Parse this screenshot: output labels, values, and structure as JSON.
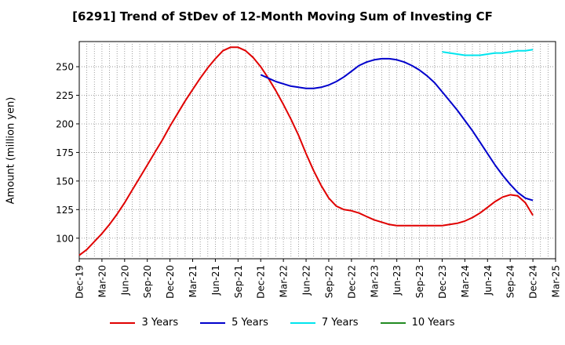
{
  "title": "[6291]  Trend of StDev of 12-Month Moving Sum of Investing CF",
  "chart_data": {
    "type": "line",
    "title": "[6291]  Trend of StDev of 12-Month Moving Sum of Investing CF",
    "xlabel": "",
    "ylabel": "Amount (million yen)",
    "ylim": [
      82,
      272
    ],
    "yticks": [
      100,
      125,
      150,
      175,
      200,
      225,
      250
    ],
    "xlim": [
      "2019-12",
      "2025-03"
    ],
    "xtick_labels": [
      "Dec-19",
      "Mar-20",
      "Jun-20",
      "Sep-20",
      "Dec-20",
      "Mar-21",
      "Jun-21",
      "Sep-21",
      "Dec-21",
      "Mar-22",
      "Jun-22",
      "Sep-22",
      "Dec-22",
      "Mar-23",
      "Jun-23",
      "Sep-23",
      "Dec-23",
      "Mar-24",
      "Jun-24",
      "Sep-24",
      "Dec-24",
      "Mar-25"
    ],
    "grid": true,
    "legend_position": "bottom",
    "series": [
      {
        "name": "3 Years",
        "color": "#e00000",
        "x": [
          "2019-12",
          "2020-01",
          "2020-02",
          "2020-03",
          "2020-04",
          "2020-05",
          "2020-06",
          "2020-07",
          "2020-08",
          "2020-09",
          "2020-10",
          "2020-11",
          "2020-12",
          "2021-01",
          "2021-02",
          "2021-03",
          "2021-04",
          "2021-05",
          "2021-06",
          "2021-07",
          "2021-08",
          "2021-09",
          "2021-10",
          "2021-11",
          "2021-12",
          "2022-01",
          "2022-02",
          "2022-03",
          "2022-04",
          "2022-05",
          "2022-06",
          "2022-07",
          "2022-08",
          "2022-09",
          "2022-10",
          "2022-11",
          "2022-12",
          "2023-01",
          "2023-02",
          "2023-03",
          "2023-04",
          "2023-05",
          "2023-06",
          "2023-07",
          "2023-08",
          "2023-09",
          "2023-10",
          "2023-11",
          "2023-12",
          "2024-01",
          "2024-02",
          "2024-03",
          "2024-04",
          "2024-05",
          "2024-06",
          "2024-07",
          "2024-08",
          "2024-09",
          "2024-10",
          "2024-11",
          "2024-12"
        ],
        "values": [
          85,
          90,
          97,
          104,
          112,
          121,
          131,
          142,
          153,
          164,
          175,
          186,
          198,
          209,
          220,
          230,
          240,
          249,
          257,
          264,
          267,
          267,
          264,
          258,
          250,
          240,
          229,
          217,
          204,
          190,
          174,
          159,
          146,
          135,
          128,
          125,
          124,
          122,
          119,
          116,
          114,
          112,
          111,
          111,
          111,
          111,
          111,
          111,
          111,
          112,
          113,
          115,
          118,
          122,
          127,
          132,
          136,
          138,
          137,
          131,
          120
        ]
      },
      {
        "name": "5 Years",
        "color": "#0000cc",
        "x": [
          "2021-12",
          "2022-01",
          "2022-02",
          "2022-03",
          "2022-04",
          "2022-05",
          "2022-06",
          "2022-07",
          "2022-08",
          "2022-09",
          "2022-10",
          "2022-11",
          "2022-12",
          "2023-01",
          "2023-02",
          "2023-03",
          "2023-04",
          "2023-05",
          "2023-06",
          "2023-07",
          "2023-08",
          "2023-09",
          "2023-10",
          "2023-11",
          "2023-12",
          "2024-01",
          "2024-02",
          "2024-03",
          "2024-04",
          "2024-05",
          "2024-06",
          "2024-07",
          "2024-08",
          "2024-09",
          "2024-10",
          "2024-11",
          "2024-12"
        ],
        "values": [
          243,
          240,
          237,
          235,
          233,
          232,
          231,
          231,
          232,
          234,
          237,
          241,
          246,
          251,
          254,
          256,
          257,
          257,
          256,
          254,
          251,
          247,
          242,
          236,
          228,
          220,
          212,
          203,
          194,
          184,
          174,
          164,
          155,
          147,
          140,
          135,
          133
        ]
      },
      {
        "name": "7 Years",
        "color": "#00e5ee",
        "x": [
          "2023-12",
          "2024-01",
          "2024-02",
          "2024-03",
          "2024-04",
          "2024-05",
          "2024-06",
          "2024-07",
          "2024-08",
          "2024-09",
          "2024-10",
          "2024-11",
          "2024-12"
        ],
        "values": [
          263,
          262,
          261,
          260,
          260,
          260,
          261,
          262,
          262,
          263,
          264,
          264,
          265
        ]
      },
      {
        "name": "10 Years",
        "color": "#228b22",
        "x": [],
        "values": []
      }
    ]
  }
}
